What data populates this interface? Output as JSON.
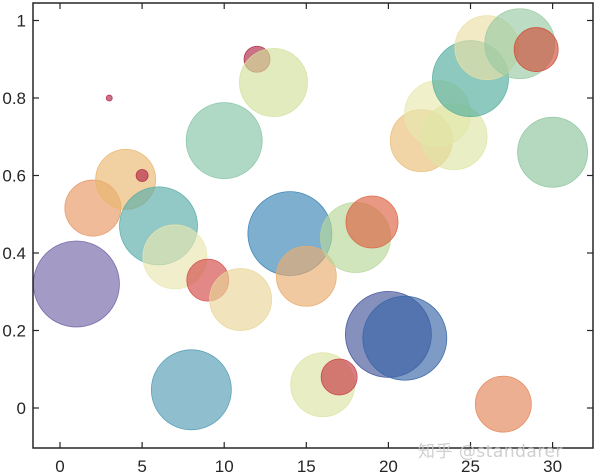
{
  "watermark": "知乎 @standarer",
  "chart_data": {
    "type": "scatter",
    "subtype": "bubble",
    "title": "",
    "xlabel": "",
    "ylabel": "",
    "xlim": [
      -1.6,
      32.3
    ],
    "ylim": [
      -0.1,
      1.05
    ],
    "xticks": [
      0,
      5,
      10,
      15,
      20,
      25,
      30
    ],
    "yticks": [
      0,
      0.2,
      0.4,
      0.6,
      0.8,
      1
    ],
    "ytick_labels": [
      "0",
      "0.2",
      "0.4",
      "0.6",
      "0.8",
      "1"
    ],
    "grid": false,
    "legend": null,
    "points": [
      {
        "x": 1,
        "y": 0.32,
        "r": 43,
        "color": "#7b6db3"
      },
      {
        "x": 2,
        "y": 0.516,
        "r": 28,
        "color": "#fba46c"
      },
      {
        "x": 3,
        "y": 0.8,
        "r": 3,
        "color": "#c0294b"
      },
      {
        "x": 4,
        "y": 0.59,
        "r": 30,
        "color": "#fdc678"
      },
      {
        "x": 5,
        "y": 0.6,
        "r": 6,
        "color": "#c0294b"
      },
      {
        "x": 6,
        "y": 0.47,
        "r": 39,
        "color": "#5fbcb8"
      },
      {
        "x": 7,
        "y": 0.39,
        "r": 32,
        "color": "#fefbbf"
      },
      {
        "x": 8,
        "y": 0.047,
        "r": 40,
        "color": "#5aabc3"
      },
      {
        "x": 9,
        "y": 0.33,
        "r": 21,
        "color": "#e5504d"
      },
      {
        "x": 10,
        "y": 0.69,
        "r": 38,
        "color": "#8fd4b4"
      },
      {
        "x": 11,
        "y": 0.28,
        "r": 31,
        "color": "#fde8a6"
      },
      {
        "x": 12,
        "y": 0.9,
        "r": 13,
        "color": "#c0294b"
      },
      {
        "x": 13,
        "y": 0.84,
        "r": 34,
        "color": "#e3f5a8"
      },
      {
        "x": 14,
        "y": 0.45,
        "r": 42,
        "color": "#3f8fc5"
      },
      {
        "x": 15,
        "y": 0.34,
        "r": 30,
        "color": "#fdbb78"
      },
      {
        "x": 16,
        "y": 0.06,
        "r": 32,
        "color": "#eff8b0"
      },
      {
        "x": 17,
        "y": 0.08,
        "r": 18,
        "color": "#d93f4a"
      },
      {
        "x": 18,
        "y": 0.44,
        "r": 35,
        "color": "#c6e9a6"
      },
      {
        "x": 19,
        "y": 0.48,
        "r": 26,
        "color": "#ef6b47"
      },
      {
        "x": 20,
        "y": 0.19,
        "r": 43,
        "color": "#4a5ca8"
      },
      {
        "x": 21,
        "y": 0.18,
        "r": 42,
        "color": "#3d6fb5"
      },
      {
        "x": 22,
        "y": 0.69,
        "r": 31,
        "color": "#fdd083"
      },
      {
        "x": 23,
        "y": 0.76,
        "r": 33,
        "color": "#fcfcbe"
      },
      {
        "x": 24,
        "y": 0.7,
        "r": 33,
        "color": "#f2f9b4"
      },
      {
        "x": 25,
        "y": 0.85,
        "r": 38,
        "color": "#58bcab"
      },
      {
        "x": 26,
        "y": 0.93,
        "r": 32,
        "color": "#fef3b4"
      },
      {
        "x": 27,
        "y": 0.01,
        "r": 28,
        "color": "#f8915f"
      },
      {
        "x": 28,
        "y": 0.94,
        "r": 35,
        "color": "#a6dcb0"
      },
      {
        "x": 29,
        "y": 0.925,
        "r": 22,
        "color": "#e2543f"
      },
      {
        "x": 30,
        "y": 0.66,
        "r": 35,
        "color": "#98d6a9"
      }
    ],
    "alpha": 0.65
  }
}
